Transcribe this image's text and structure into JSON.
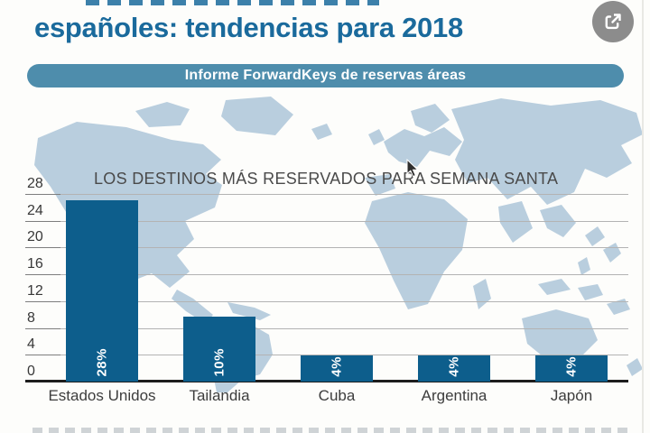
{
  "article": {
    "headline_visible_line": "españoles: tendencias para 2018",
    "banner_label": "Informe ForwardKeys de reservas áreas"
  },
  "chart_data": {
    "type": "bar",
    "title": "LOS DESTINOS MÁS RESERVADOS PARA SEMANA SANTA",
    "categories": [
      "Estados Unidos",
      "Tailandia",
      "Cuba",
      "Argentina",
      "Japón"
    ],
    "values": [
      28,
      10,
      4,
      4,
      4
    ],
    "value_labels": [
      "28%",
      "10%",
      "4%",
      "4%",
      "4%"
    ],
    "unit": "%",
    "xlabel": "",
    "ylabel": "",
    "yticks": [
      0,
      4,
      8,
      12,
      16,
      20,
      24,
      28
    ],
    "ylim": [
      0,
      28
    ],
    "grid": true,
    "legend": false,
    "background": "stylized-world-map"
  },
  "icons": {
    "share": "share-icon",
    "cursor": "mouse-cursor"
  },
  "colors": {
    "headline": "#1a6a9c",
    "banner_bg": "#4e8dac",
    "banner_text": "#ffffff",
    "bar": "#0d5e8c",
    "bar_value_text": "#ffffff",
    "map": "#b9cede",
    "gridline": "#b3b3b3",
    "axis": "#1d1d1d",
    "tick_text": "#383838",
    "category_text": "#3d3d3d",
    "chart_title_text": "#4a4a4a",
    "share_button_bg": "#8c8c8c",
    "page_bg": "#fdfdfb"
  }
}
